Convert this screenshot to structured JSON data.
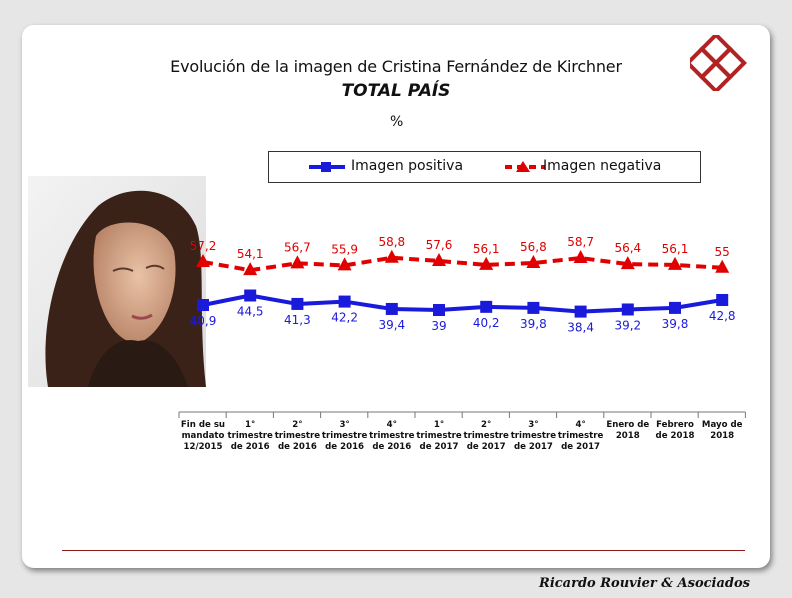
{
  "header": {
    "title": "Evolución de la imagen de Cristina Fernández de Kirchner",
    "subtitle": "TOTAL PAÍS",
    "unit": "%"
  },
  "footer": {
    "credit": "Ricardo Rouvier & Asociados"
  },
  "logo": {
    "icon": "interlocking-squares-logo-icon",
    "color": "#b22222"
  },
  "chart_data": {
    "type": "line",
    "categories": [
      [
        "Fin de su",
        "mandato",
        "12/2015"
      ],
      [
        "1°",
        "trimestre",
        "de 2016"
      ],
      [
        "2°",
        "trimestre",
        "de 2016"
      ],
      [
        "3°",
        "trimestre",
        "de 2016"
      ],
      [
        "4°",
        "trimestre",
        "de 2016"
      ],
      [
        "1°",
        "trimestre",
        "de 2017"
      ],
      [
        "2°",
        "trimestre",
        "de 2017"
      ],
      [
        "3°",
        "trimestre",
        "de 2017"
      ],
      [
        "4°",
        "trimestre",
        "de 2017"
      ],
      [
        "Enero de",
        "2018"
      ],
      [
        "Febrero",
        "de 2018"
      ],
      [
        "Mayo de",
        "2018"
      ]
    ],
    "series": [
      {
        "name": "Imagen positiva",
        "values": [
          40.9,
          44.5,
          41.3,
          42.2,
          39.4,
          39,
          40.2,
          39.8,
          38.4,
          39.2,
          39.8,
          42.8
        ],
        "labels": [
          "40,9",
          "44,5",
          "41,3",
          "42,2",
          "39,4",
          "39",
          "40,2",
          "39,8",
          "38,4",
          "39,2",
          "39,8",
          "42,8"
        ],
        "color": "#1a1adb",
        "marker": "square",
        "style": "solid"
      },
      {
        "name": "Imagen negativa",
        "values": [
          57.2,
          54.1,
          56.7,
          55.9,
          58.8,
          57.6,
          56.1,
          56.8,
          58.7,
          56.4,
          56.1,
          55
        ],
        "labels": [
          "57,2",
          "54,1",
          "56,7",
          "55,9",
          "58,8",
          "57,6",
          "56,1",
          "56,8",
          "58,7",
          "56,4",
          "56,1",
          "55"
        ],
        "color": "#e00000",
        "marker": "triangle",
        "style": "dashed"
      }
    ],
    "legend_position": "top-center",
    "grid": false
  }
}
